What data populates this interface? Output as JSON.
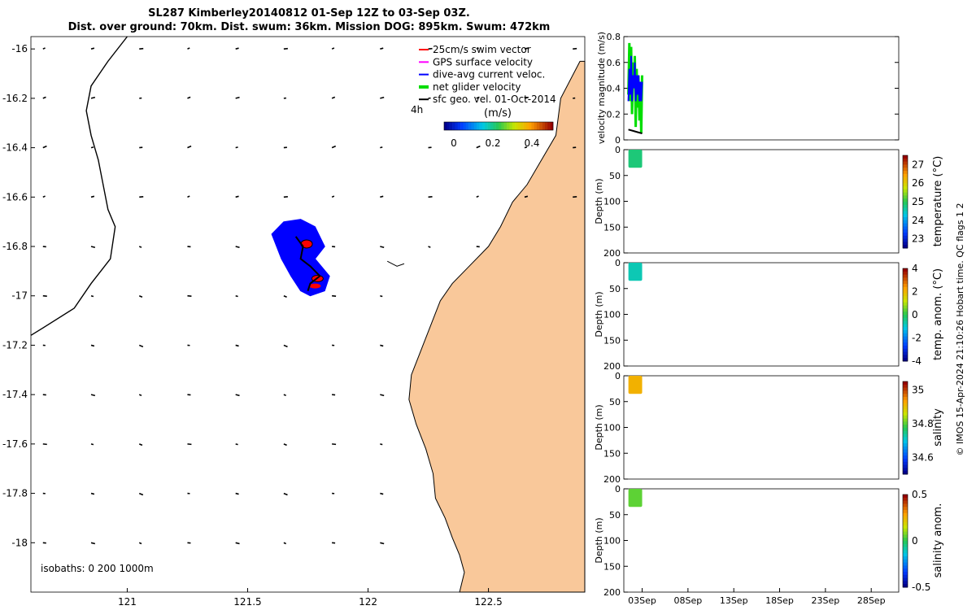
{
  "title": {
    "line1": "SL287 Kimberley20140812 01-Sep 12Z to 03-Sep 03Z.",
    "line2": "Dist. over ground: 70km. Dist. swum: 36km. Mission DOG: 895km. Swum: 472km"
  },
  "colors": {
    "land": "#f9c89a",
    "swim_vector": "#ff0000",
    "gps_velocity": "#ff00ff",
    "dive_avg_current": "#0000ff",
    "net_glider": "#00dd00",
    "sfc_geo": "#000000"
  },
  "map": {
    "lon_range": [
      120.6,
      122.9
    ],
    "lat_range": [
      -18.2,
      -15.95
    ],
    "xticks": [
      121,
      121.5,
      122,
      122.5
    ],
    "xtick_labels": [
      "121",
      "121.5",
      "122",
      "122.5"
    ],
    "yticks": [
      -16,
      -16.2,
      -16.4,
      -16.6,
      -16.8,
      -17,
      -17.2,
      -17.4,
      -17.6,
      -17.8,
      -18
    ],
    "ytick_labels": [
      "-16",
      "-16.2",
      "-16.4",
      "-16.6",
      "-16.8",
      "-17",
      "-17.2",
      "-17.4",
      "-17.6",
      "-17.8",
      "-18"
    ],
    "legend": {
      "items": [
        "25cm/s swim vector",
        "GPS surface velocity",
        "dive-avg current veloc.",
        "net glider velocity",
        "sfc geo. vel. 01-Oct-2014"
      ],
      "time_label": "4h",
      "units_label": "(m/s)",
      "colorbar_ticks": [
        "0",
        "0.2",
        "0.4"
      ]
    },
    "isobaths_label": "isobaths: 0   200  1000m"
  },
  "chart_data": [
    {
      "type": "line",
      "panel": "velocity",
      "ylabel": "velocity magnitude (m/s)",
      "ylim": [
        0,
        0.8
      ],
      "yticks": [
        "0",
        "0.2",
        "0.4",
        "0.6",
        "0.8"
      ],
      "xlabel": "",
      "series": [
        {
          "name": "net glider velocity",
          "x_days": [
            1.5,
            1.6,
            1.7,
            1.8,
            1.9,
            2.0,
            2.1,
            2.2,
            2.3,
            2.4,
            2.5,
            2.6,
            2.7,
            2.8,
            2.9,
            3.0
          ],
          "values": [
            0.35,
            0.75,
            0.3,
            0.72,
            0.2,
            0.6,
            0.4,
            0.65,
            0.1,
            0.55,
            0.25,
            0.5,
            0.15,
            0.45,
            0.05,
            0.5
          ]
        },
        {
          "name": "dive-avg current veloc.",
          "x_days": [
            1.5,
            1.6,
            1.7,
            1.8,
            1.9,
            2.0,
            2.1,
            2.2,
            2.3,
            2.4,
            2.5,
            2.6,
            2.7,
            2.8,
            2.9,
            3.0
          ],
          "values": [
            0.3,
            0.55,
            0.35,
            0.65,
            0.3,
            0.5,
            0.4,
            0.6,
            0.3,
            0.5,
            0.35,
            0.5,
            0.3,
            0.45,
            0.3,
            0.45
          ]
        },
        {
          "name": "sfc geo. vel.",
          "x_days": [
            1.5,
            2.0,
            2.5,
            3.0
          ],
          "values": [
            0.08,
            0.07,
            0.06,
            0.05
          ]
        }
      ]
    },
    {
      "type": "heatmap",
      "panel": "temperature",
      "ylabel": "Depth (m)",
      "ylim": [
        0,
        200
      ],
      "yticks": [
        "0",
        "50",
        "100",
        "150",
        "200"
      ],
      "colorbar_label": "temperature (°C)",
      "colorbar_ticks": [
        "27",
        "26",
        "25",
        "24",
        "23"
      ],
      "colorbar_range": [
        22.5,
        27.5
      ],
      "x_days": [
        1.5,
        3.0
      ],
      "depth_range": [
        0,
        35
      ],
      "value": 24.8
    },
    {
      "type": "heatmap",
      "panel": "temp_anom",
      "ylabel": "Depth (m)",
      "ylim": [
        0,
        200
      ],
      "yticks": [
        "0",
        "50",
        "100",
        "150",
        "200"
      ],
      "colorbar_label": "temp. anom. (°C)",
      "colorbar_ticks": [
        "4",
        "2",
        "0",
        "-2",
        "-4"
      ],
      "colorbar_range": [
        -4,
        4
      ],
      "x_days": [
        1.5,
        3.0
      ],
      "depth_range": [
        0,
        35
      ],
      "value": -0.8
    },
    {
      "type": "heatmap",
      "panel": "salinity",
      "ylabel": "Depth (m)",
      "ylim": [
        0,
        200
      ],
      "yticks": [
        "0",
        "50",
        "100",
        "150",
        "200"
      ],
      "colorbar_label": "salinity",
      "colorbar_ticks": [
        "35",
        "34.8",
        "34.6"
      ],
      "colorbar_range": [
        34.5,
        35.05
      ],
      "x_days": [
        1.5,
        3.0
      ],
      "depth_range": [
        0,
        35
      ],
      "value": 34.92
    },
    {
      "type": "heatmap",
      "panel": "salinity_anom",
      "ylabel": "Depth (m)",
      "ylim": [
        0,
        200
      ],
      "yticks": [
        "0",
        "50",
        "100",
        "150",
        "200"
      ],
      "colorbar_label": "salinity anom.",
      "colorbar_ticks": [
        "0.5",
        "0",
        "-0.5"
      ],
      "colorbar_range": [
        -0.5,
        0.5
      ],
      "x_days": [
        1.5,
        3.0
      ],
      "depth_range": [
        0,
        35
      ],
      "value": 0.05,
      "xtick_labels": [
        "03Sep",
        "08Sep",
        "13Sep",
        "18Sep",
        "23Sep",
        "28Sep"
      ],
      "xtick_days": [
        3,
        8,
        13,
        18,
        23,
        28
      ],
      "xlim_days": [
        1,
        31
      ]
    }
  ],
  "footer": {
    "qc_label": "© IMOS 15-Apr-2024 21:10:26 Hobart time. QC flags 1  2"
  }
}
